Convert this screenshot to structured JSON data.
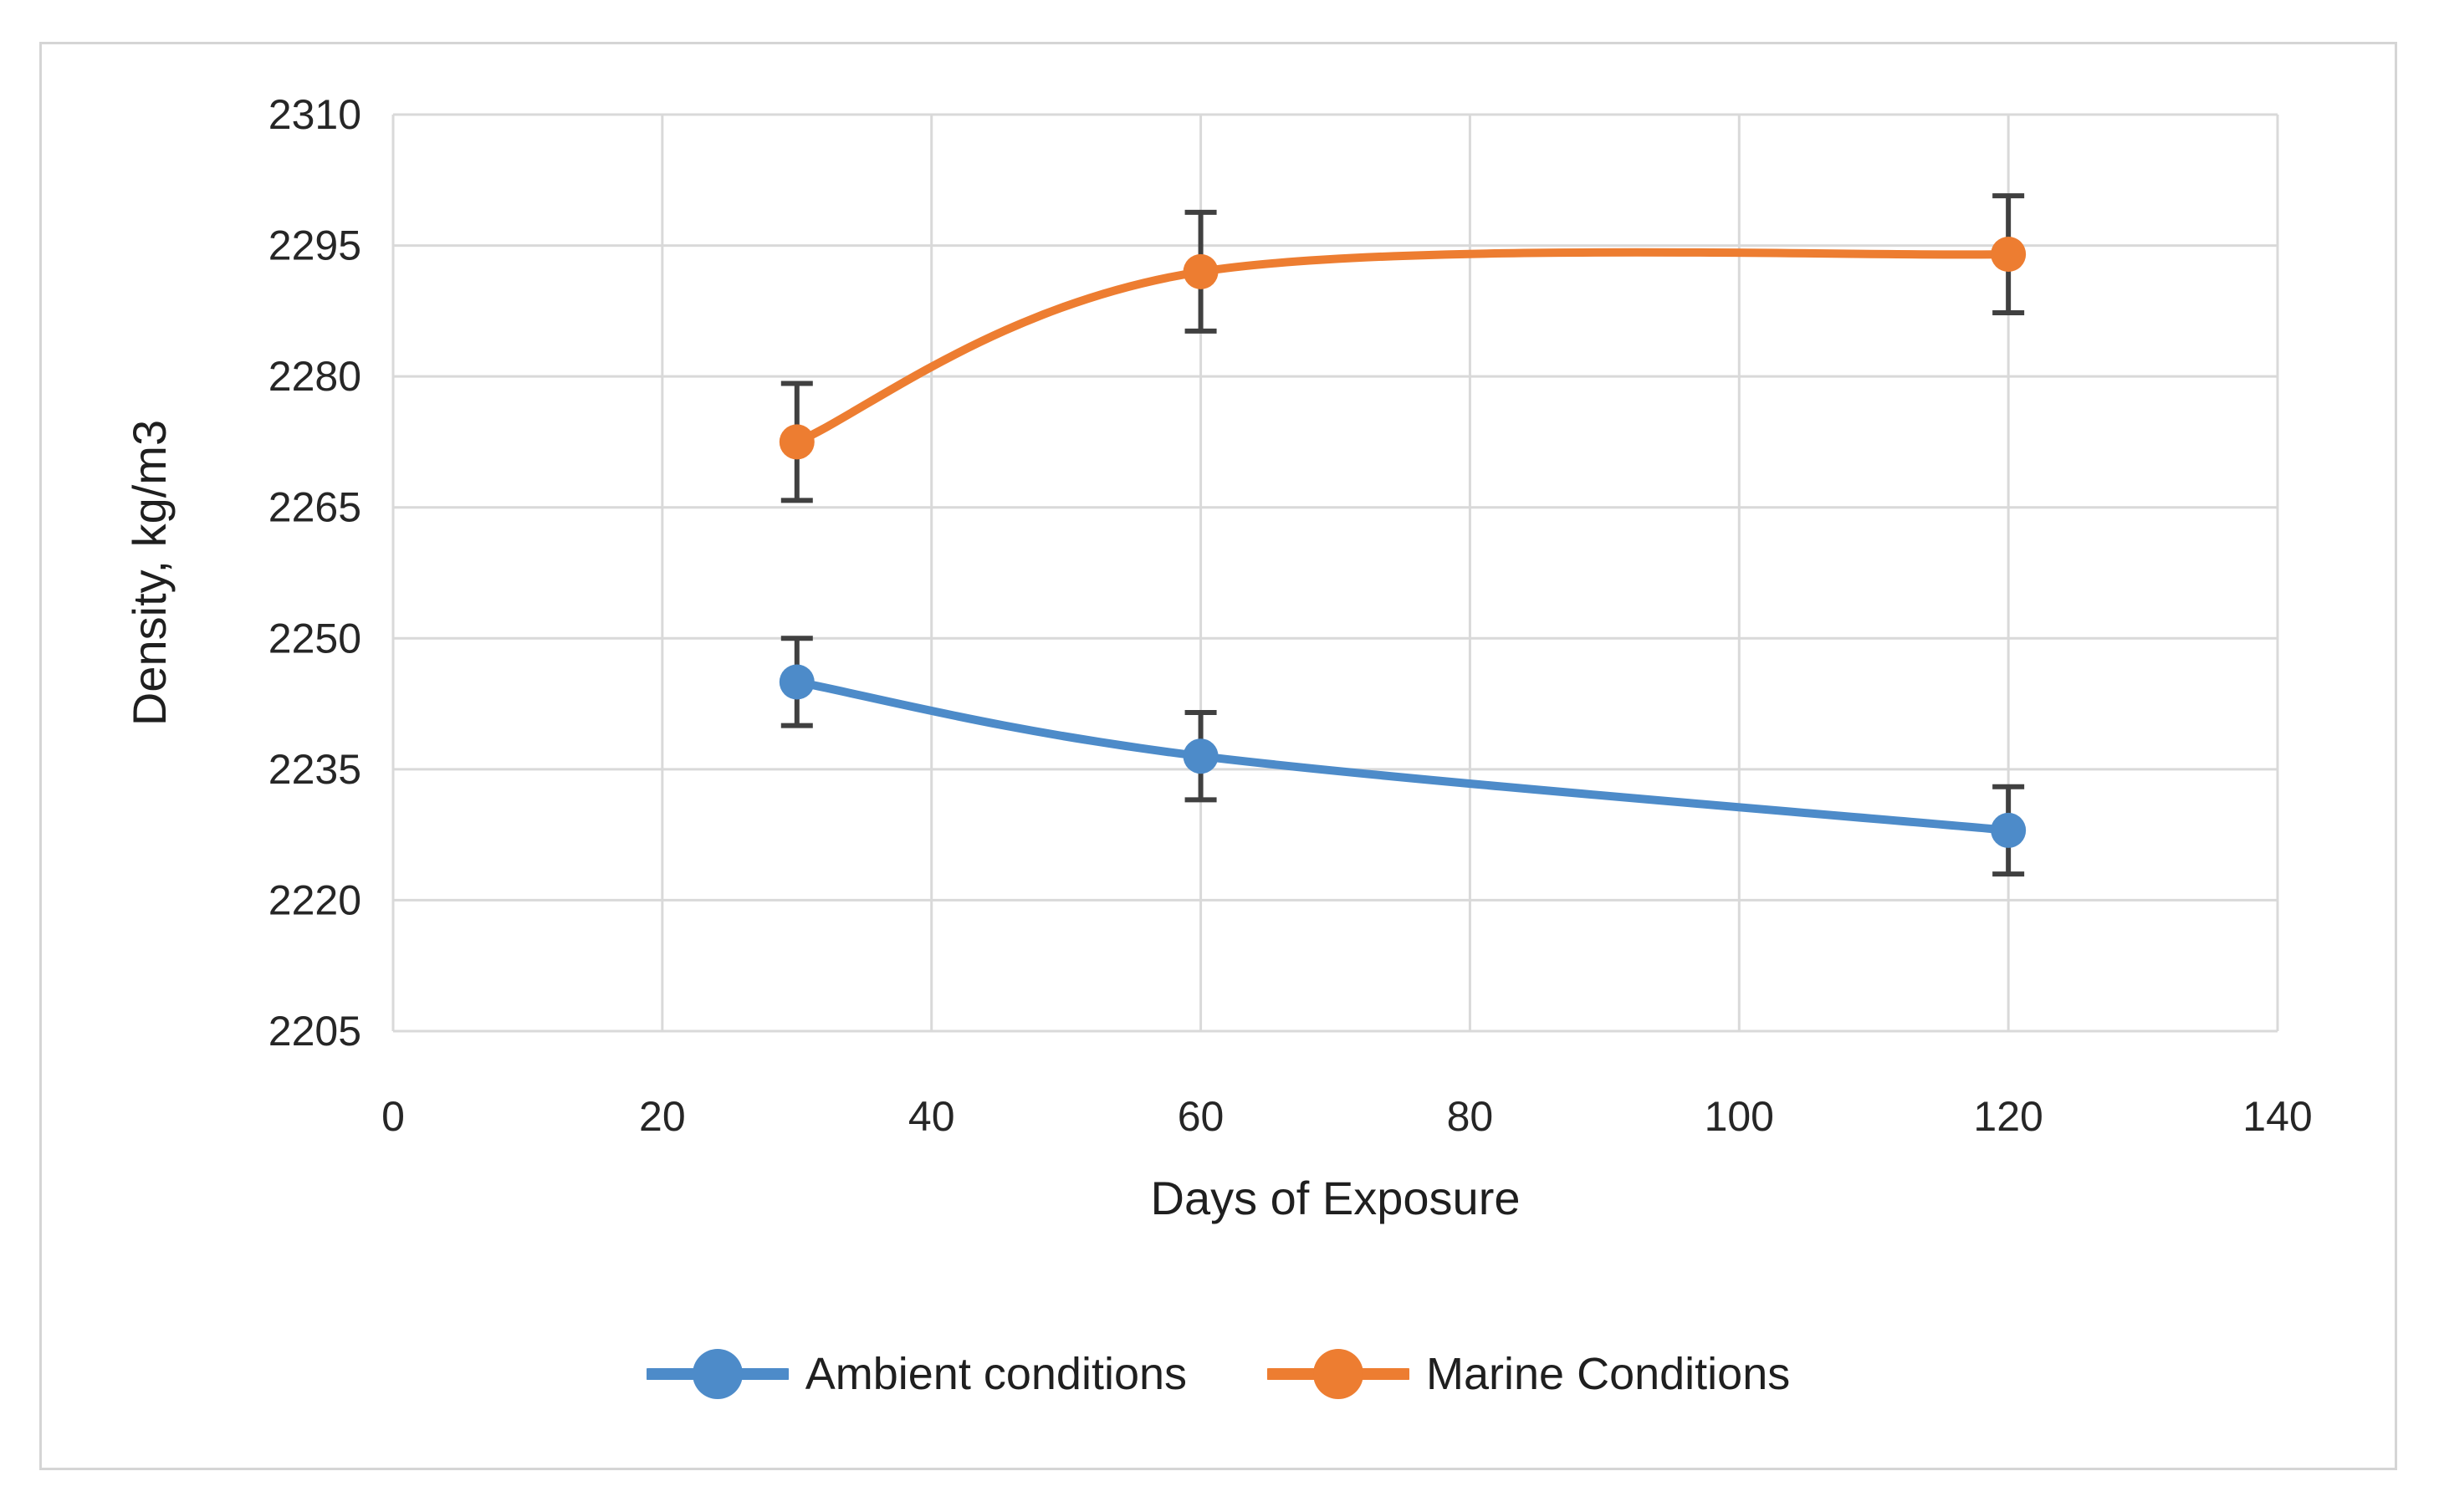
{
  "chart_data": {
    "type": "line",
    "title": "",
    "xlabel": "Days of Exposure",
    "ylabel": "Density, kg/m3",
    "x": [
      30,
      60,
      120
    ],
    "series": [
      {
        "name": "Ambient conditions",
        "color": "#4D8BC9",
        "values": [
          2245,
          2236.5,
          2228
        ],
        "error": [
          5,
          5,
          5
        ]
      },
      {
        "name": "Marine Conditions",
        "color": "#ED7D31",
        "values": [
          2272.5,
          2292,
          2294
        ],
        "error": [
          6.7,
          6.8,
          6.7
        ]
      }
    ],
    "xlim": [
      0,
      140
    ],
    "ylim": [
      2205,
      2310
    ],
    "xticks": [
      0,
      20,
      40,
      60,
      80,
      100,
      120,
      140
    ],
    "yticks": [
      2205,
      2220,
      2235,
      2250,
      2265,
      2280,
      2295,
      2310
    ],
    "grid": true,
    "smoothed": true,
    "legend_position": "bottom",
    "marker": "circle",
    "error_bars": true,
    "colors": {
      "gridline": "#d9d9d9",
      "error_bar": "#404040",
      "tick_text": "#262626",
      "frame_border": "#d5d5d5",
      "background": "#ffffff"
    }
  }
}
